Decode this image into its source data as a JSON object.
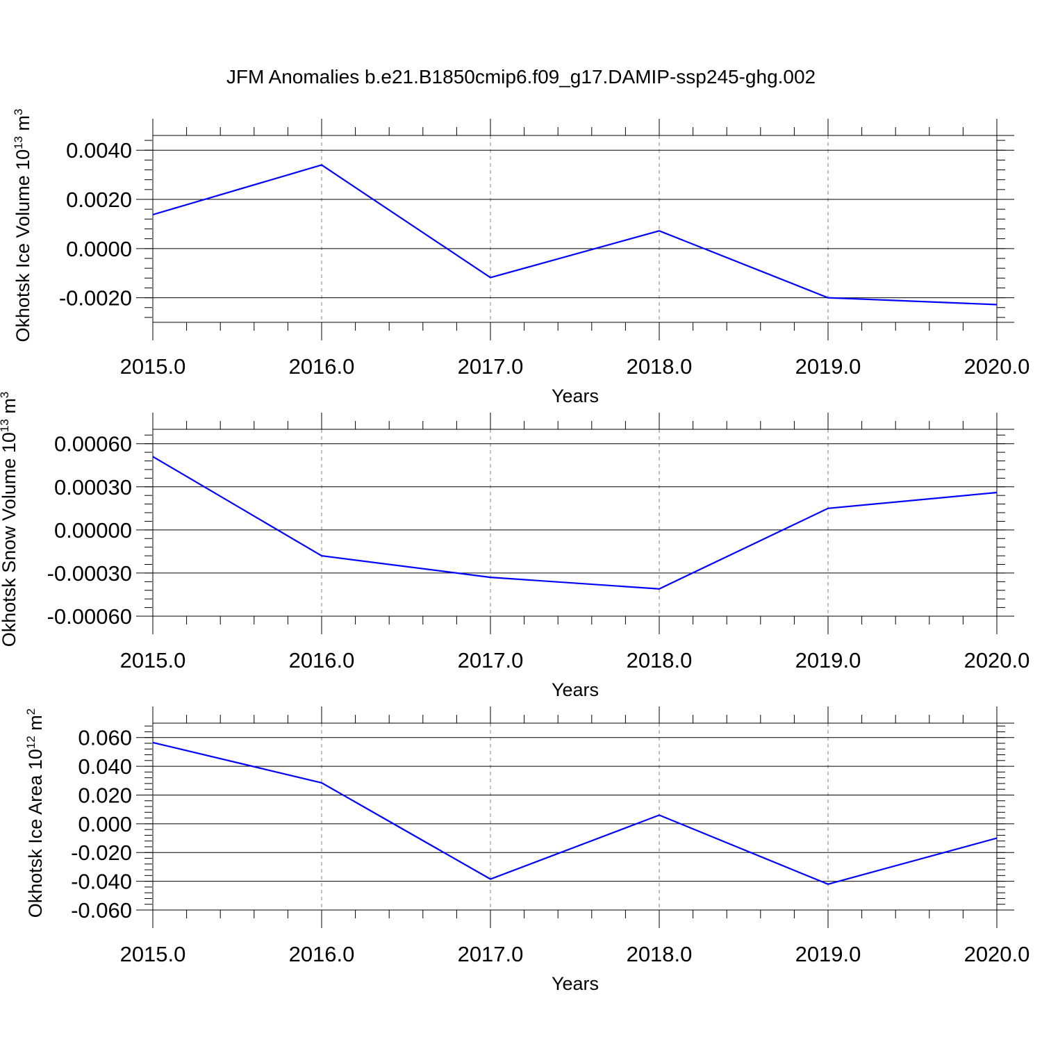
{
  "title": "JFM Anomalies b.e21.B1850cmip6.f09_g17.DAMIP-ssp245-ghg.002",
  "colors": {
    "series": "#0000ff",
    "axis": "#000000",
    "grid": "#808080",
    "background": "#ffffff"
  },
  "chart_data": [
    {
      "type": "line",
      "ylabel": {
        "base": "Okhotsk Ice Volume 10",
        "exp": "13",
        "unit": " m",
        "unit_exp": "3"
      },
      "xlabel": "Years",
      "x": [
        2015,
        2016,
        2017,
        2018,
        2019,
        2020
      ],
      "xlim": [
        2015,
        2020
      ],
      "xticks": [
        2015,
        2016,
        2017,
        2018,
        2019,
        2020
      ],
      "xtick_labels": [
        "2015.0",
        "2016.0",
        "2017.0",
        "2018.0",
        "2019.0",
        "2020.0"
      ],
      "ylim": [
        -0.003,
        0.0046
      ],
      "yticks": [
        -0.002,
        0.0,
        0.002,
        0.004
      ],
      "ytick_labels": [
        "-0.0020",
        "0.0000",
        "0.0020",
        "0.0040"
      ],
      "yminor_step": 0.0004,
      "series": [
        {
          "values": [
            0.00138,
            0.0034,
            -0.00118,
            0.00072,
            -0.002,
            -0.00228
          ]
        }
      ],
      "grid": "vertical dashed at major x ticks"
    },
    {
      "type": "line",
      "ylabel": {
        "base": "Okhotsk Snow Volume 10",
        "exp": "13",
        "unit": " m",
        "unit_exp": "3"
      },
      "xlabel": "Years",
      "x": [
        2015,
        2016,
        2017,
        2018,
        2019,
        2020
      ],
      "xlim": [
        2015,
        2020
      ],
      "xticks": [
        2015,
        2016,
        2017,
        2018,
        2019,
        2020
      ],
      "xtick_labels": [
        "2015.0",
        "2016.0",
        "2017.0",
        "2018.0",
        "2019.0",
        "2020.0"
      ],
      "ylim": [
        -0.0006,
        0.0007
      ],
      "yticks": [
        -0.0006,
        -0.0003,
        0.0,
        0.0003,
        0.0006
      ],
      "ytick_labels": [
        "-0.00060",
        "-0.00030",
        "0.00000",
        "0.00030",
        "0.00060"
      ],
      "yminor_step": 6e-05,
      "series": [
        {
          "values": [
            0.00051,
            -0.00018,
            -0.00033,
            -0.00041,
            0.00015,
            0.00026
          ]
        }
      ],
      "grid": "vertical dashed at major x ticks"
    },
    {
      "type": "line",
      "ylabel": {
        "base": "Okhotsk Ice Area 10",
        "exp": "12",
        "unit": " m",
        "unit_exp": "2"
      },
      "xlabel": "Years",
      "x": [
        2015,
        2016,
        2017,
        2018,
        2019,
        2020
      ],
      "xlim": [
        2015,
        2020
      ],
      "xticks": [
        2015,
        2016,
        2017,
        2018,
        2019,
        2020
      ],
      "xtick_labels": [
        "2015.0",
        "2016.0",
        "2017.0",
        "2018.0",
        "2019.0",
        "2020.0"
      ],
      "ylim": [
        -0.06,
        0.07
      ],
      "yticks": [
        -0.06,
        -0.04,
        -0.02,
        0.0,
        0.02,
        0.04,
        0.06
      ],
      "ytick_labels": [
        "-0.060",
        "-0.040",
        "-0.020",
        "0.000",
        "0.020",
        "0.040",
        "0.060"
      ],
      "yminor_step": 0.004,
      "series": [
        {
          "values": [
            0.0565,
            0.0285,
            -0.0385,
            0.006,
            -0.042,
            -0.01
          ]
        }
      ],
      "grid": "vertical dashed at major x ticks"
    }
  ]
}
